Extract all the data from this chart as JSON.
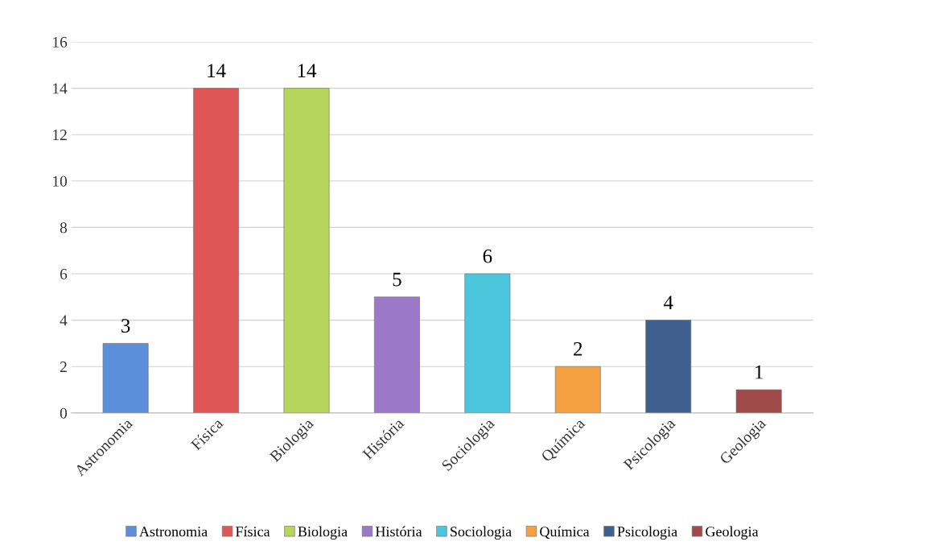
{
  "chart_data": {
    "type": "bar",
    "categories": [
      "Astronomia",
      "Física",
      "Biologia",
      "História",
      "Sociologia",
      "Química",
      "Psicologia",
      "Geologia"
    ],
    "series": [
      {
        "name": "Astronomia",
        "color": "#5b8fd9",
        "values": [
          3,
          null,
          null,
          null,
          null,
          null,
          null,
          null
        ]
      },
      {
        "name": "Física",
        "color": "#e05555",
        "values": [
          null,
          14,
          null,
          null,
          null,
          null,
          null,
          null
        ]
      },
      {
        "name": "Biologia",
        "color": "#b5d65a",
        "values": [
          null,
          null,
          14,
          null,
          null,
          null,
          null,
          null
        ]
      },
      {
        "name": "História",
        "color": "#9b78c8",
        "values": [
          null,
          null,
          null,
          5,
          null,
          null,
          null,
          null
        ]
      },
      {
        "name": "Sociologia",
        "color": "#4cc6dd",
        "values": [
          null,
          null,
          null,
          null,
          6,
          null,
          null,
          null
        ]
      },
      {
        "name": "Química",
        "color": "#f5a040",
        "values": [
          null,
          null,
          null,
          null,
          null,
          2,
          null,
          null
        ]
      },
      {
        "name": "Psicologia",
        "color": "#3f5f8f",
        "values": [
          null,
          null,
          null,
          null,
          null,
          null,
          4,
          null
        ]
      },
      {
        "name": "Geologia",
        "color": "#a04a4a",
        "values": [
          null,
          null,
          null,
          null,
          null,
          null,
          null,
          1
        ]
      }
    ],
    "ylim": [
      0,
      16
    ],
    "yticks": [
      0,
      2,
      4,
      6,
      8,
      10,
      12,
      14,
      16
    ],
    "grid": "y",
    "data_labels": true,
    "legend": "bottom"
  }
}
